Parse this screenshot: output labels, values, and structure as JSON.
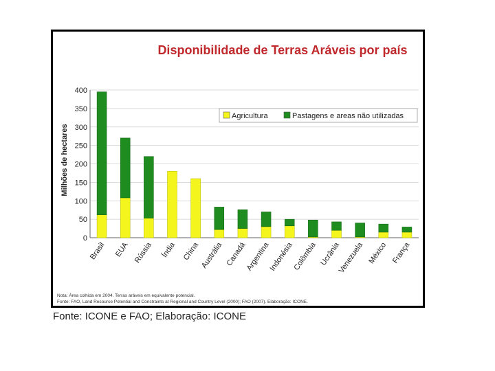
{
  "colors": {
    "agriculture": "#f5f51e",
    "pasture": "#1e8c1e",
    "title": "#c0282c",
    "grid": "#cfcfcf"
  },
  "chart_data": {
    "type": "bar",
    "stacked": true,
    "title": "Disponibilidade de Terras Aráveis por país",
    "ylabel": "Milhões de hectares",
    "xlabel": "",
    "ylim": [
      0,
      400
    ],
    "yticks": [
      0,
      50,
      100,
      150,
      200,
      250,
      300,
      350,
      400
    ],
    "grid": true,
    "legend_position": "top-right",
    "categories": [
      "Brasil",
      "EUA",
      "Rússia",
      "Índia",
      "China",
      "Austrália",
      "Canadá",
      "Argentina",
      "Indonésia",
      "Colômbia",
      "Ucrânia",
      "Venezuela",
      "México",
      "França"
    ],
    "series": [
      {
        "name": "Agricultura",
        "color": "#f5f51e",
        "values": [
          62,
          108,
          53,
          180,
          160,
          22,
          25,
          30,
          32,
          2,
          20,
          2,
          15,
          15
        ]
      },
      {
        "name": "Pastagens e areas não utilizadas",
        "color": "#1e8c1e",
        "values": [
          333,
          162,
          167,
          0,
          0,
          61,
          51,
          40,
          18,
          46,
          23,
          38,
          22,
          14
        ]
      }
    ],
    "notes": [
      "Nota: Área colhida em 2004. Terras aráveis em equivalente potencial.",
      "Fonte: FAO, Land Resource Potential and Constraints at Regional and Country Level (2000); FAO (2007). Elaboração: ICONE."
    ]
  },
  "source_caption": "Fonte: ICONE e FAO; Elaboração: ICONE"
}
